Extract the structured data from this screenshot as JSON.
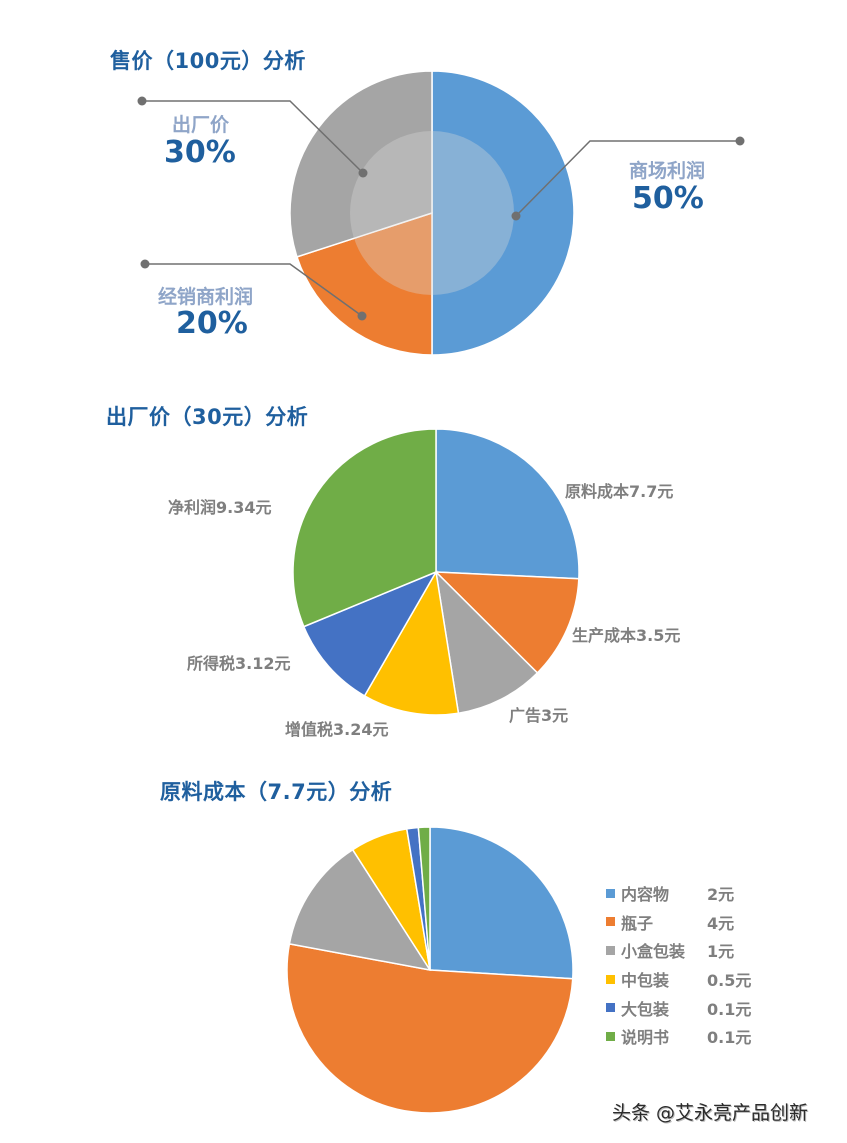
{
  "titles": {
    "chart1": "售价（100元）分析",
    "chart2": "出厂价（30元）分析",
    "chart3": "原料成本（7.7元）分析"
  },
  "watermark": "头条 @艾永亮产品创新",
  "colors": {
    "title": "#1f5f9e",
    "blue": "#5b9bd5",
    "orange": "#ed7d31",
    "gray": "#a5a5a5",
    "yellow": "#ffc000",
    "darkblue": "#4472c4",
    "green": "#70ad47",
    "label_gray": "#7f7f7f",
    "callout_name": "#8fa5c8"
  },
  "chart_data": [
    {
      "type": "pie",
      "variant": "donut-with-inner-overlay",
      "title": "售价（100元）分析",
      "categories": [
        "商场利润",
        "经销商利润",
        "出厂价"
      ],
      "values": [
        50,
        20,
        30
      ],
      "unit": "%",
      "labels": [
        "商场利润 50%",
        "经销商利润 20%",
        "出厂价 30%"
      ],
      "colors": [
        "#5b9bd5",
        "#ed7d31",
        "#a5a5a5"
      ],
      "start_angle_deg": 0,
      "direction": "clockwise",
      "legend": "none (callout labels)"
    },
    {
      "type": "pie",
      "title": "出厂价（30元）分析",
      "categories": [
        "原料成本",
        "生产成本",
        "广告",
        "增值税",
        "所得税",
        "净利润"
      ],
      "values": [
        7.7,
        3.5,
        3,
        3.24,
        3.12,
        9.34
      ],
      "unit": "元",
      "labels": [
        "原料成本7.7元",
        "生产成本3.5元",
        "广告3元",
        "增值税3.24元",
        "所得税3.12元",
        "净利润9.34元"
      ],
      "colors": [
        "#5b9bd5",
        "#ed7d31",
        "#a5a5a5",
        "#ffc000",
        "#4472c4",
        "#70ad47"
      ],
      "start_angle_deg": 0,
      "direction": "clockwise",
      "legend": "none (data labels outside)"
    },
    {
      "type": "pie",
      "title": "原料成本（7.7元）分析",
      "categories": [
        "内容物",
        "瓶子",
        "小盒包装",
        "中包装",
        "大包装",
        "说明书"
      ],
      "values": [
        2,
        4,
        1,
        0.5,
        0.1,
        0.1
      ],
      "unit": "元",
      "colors": [
        "#5b9bd5",
        "#ed7d31",
        "#a5a5a5",
        "#ffc000",
        "#4472c4",
        "#70ad47"
      ],
      "start_angle_deg": 0,
      "direction": "clockwise",
      "legend_position": "right",
      "legend": [
        {
          "name": "内容物",
          "value": "2元"
        },
        {
          "name": "瓶子",
          "value": "4元"
        },
        {
          "name": "小盒包装",
          "value": "1元"
        },
        {
          "name": "中包装",
          "value": "0.5元"
        },
        {
          "name": "大包装",
          "value": "0.1元"
        },
        {
          "name": "说明书",
          "value": "0.1元"
        }
      ]
    }
  ]
}
